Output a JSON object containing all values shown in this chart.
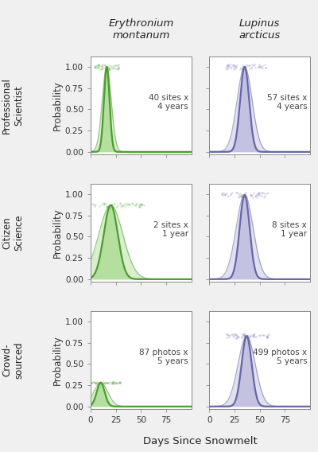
{
  "species": [
    "Erythronium\nmontanum",
    "Lupinus\narcticus"
  ],
  "methods": [
    "Professional\nScientist",
    "Citizen\nScience",
    "Crowd-\nsourced"
  ],
  "annotations": [
    [
      "40 sites x\n4 years",
      "57 sites x\n4 years"
    ],
    [
      "2 sites x\n1 year",
      "8 sites x\n1 year"
    ],
    [
      "87 photos x\n5 years",
      "499 photos x\n5 years"
    ]
  ],
  "green_color": "#4a9e2f",
  "green_fill": "#7ec95a",
  "blue_color": "#6666aa",
  "blue_fill": "#9999cc",
  "background": "#f0f0f0",
  "panel_bg": "#ffffff",
  "xlabel": "Days Since Snowmelt",
  "ylabel": "Probability",
  "xlim": [
    0,
    100
  ],
  "ylim": [
    -0.03,
    1.12
  ],
  "xticks": [
    0,
    25,
    50,
    75
  ],
  "yticks": [
    0.0,
    0.25,
    0.5,
    0.75,
    1.0
  ],
  "curves": {
    "erythronium": {
      "professional": {
        "mu": 16,
        "sigma_inner": 2.8,
        "sigma_outer": 4.5,
        "peak": 1.0
      },
      "citizen": {
        "mu": 20,
        "sigma_inner": 7.0,
        "sigma_outer": 12.0,
        "peak": 0.87
      },
      "crowd": {
        "mu": 10,
        "sigma_inner": 4.0,
        "sigma_outer": 7.0,
        "peak": 0.28
      }
    },
    "lupinus": {
      "professional": {
        "mu": 35,
        "sigma_inner": 4.5,
        "sigma_outer": 7.5,
        "peak": 1.0
      },
      "citizen": {
        "mu": 35,
        "sigma_inner": 5.0,
        "sigma_outer": 8.5,
        "peak": 0.99
      },
      "crowd": {
        "mu": 37,
        "sigma_inner": 5.0,
        "sigma_outer": 8.5,
        "peak": 0.83
      }
    }
  },
  "fig_width": 4.0,
  "fig_height": 5.68
}
